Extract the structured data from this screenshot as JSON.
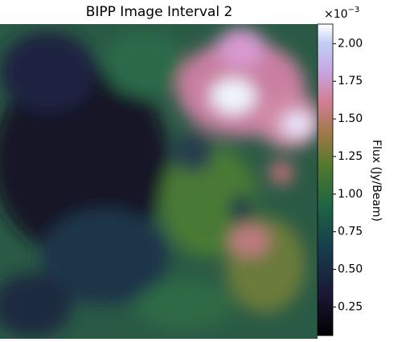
{
  "chart_data": {
    "type": "heatmap",
    "title": "BIPP Image Interval 2",
    "colorbar_label": "Flux (Jy/Beam)",
    "colorbar_offset": {
      "base": "×10",
      "exponent": "−3"
    },
    "clim": [
      0.06,
      2.13
    ],
    "colorbar_ticks": [
      {
        "value": 0.25,
        "label": "0.25"
      },
      {
        "value": 0.5,
        "label": "0.50"
      },
      {
        "value": 0.75,
        "label": "0.75"
      },
      {
        "value": 1.0,
        "label": "1.00"
      },
      {
        "value": 1.25,
        "label": "1.25"
      },
      {
        "value": 1.5,
        "label": "1.50"
      },
      {
        "value": 1.75,
        "label": "1.75"
      },
      {
        "value": 2.0,
        "label": "2.00"
      }
    ],
    "colormap": "cubehelix"
  }
}
